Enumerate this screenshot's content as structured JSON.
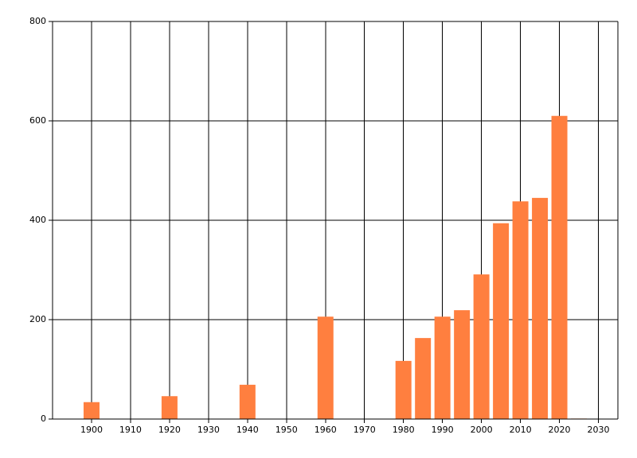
{
  "chart_data": {
    "type": "bar",
    "x": [
      1900,
      1920,
      1940,
      1960,
      1980,
      1985,
      1990,
      1995,
      2000,
      2005,
      2010,
      2015,
      2020,
      2025
    ],
    "values": [
      34,
      46,
      69,
      206,
      117,
      163,
      206,
      219,
      291,
      394,
      438,
      445,
      610,
      1
    ],
    "color": "#ff7f3f",
    "xlim": [
      1890,
      2035
    ],
    "xticks": [
      1900,
      1910,
      1920,
      1930,
      1940,
      1950,
      1960,
      1970,
      1980,
      1990,
      2000,
      2010,
      2020,
      2030
    ],
    "ylim": [
      0,
      800
    ],
    "yticks": [
      0,
      200,
      400,
      600,
      800
    ],
    "grid": true
  }
}
